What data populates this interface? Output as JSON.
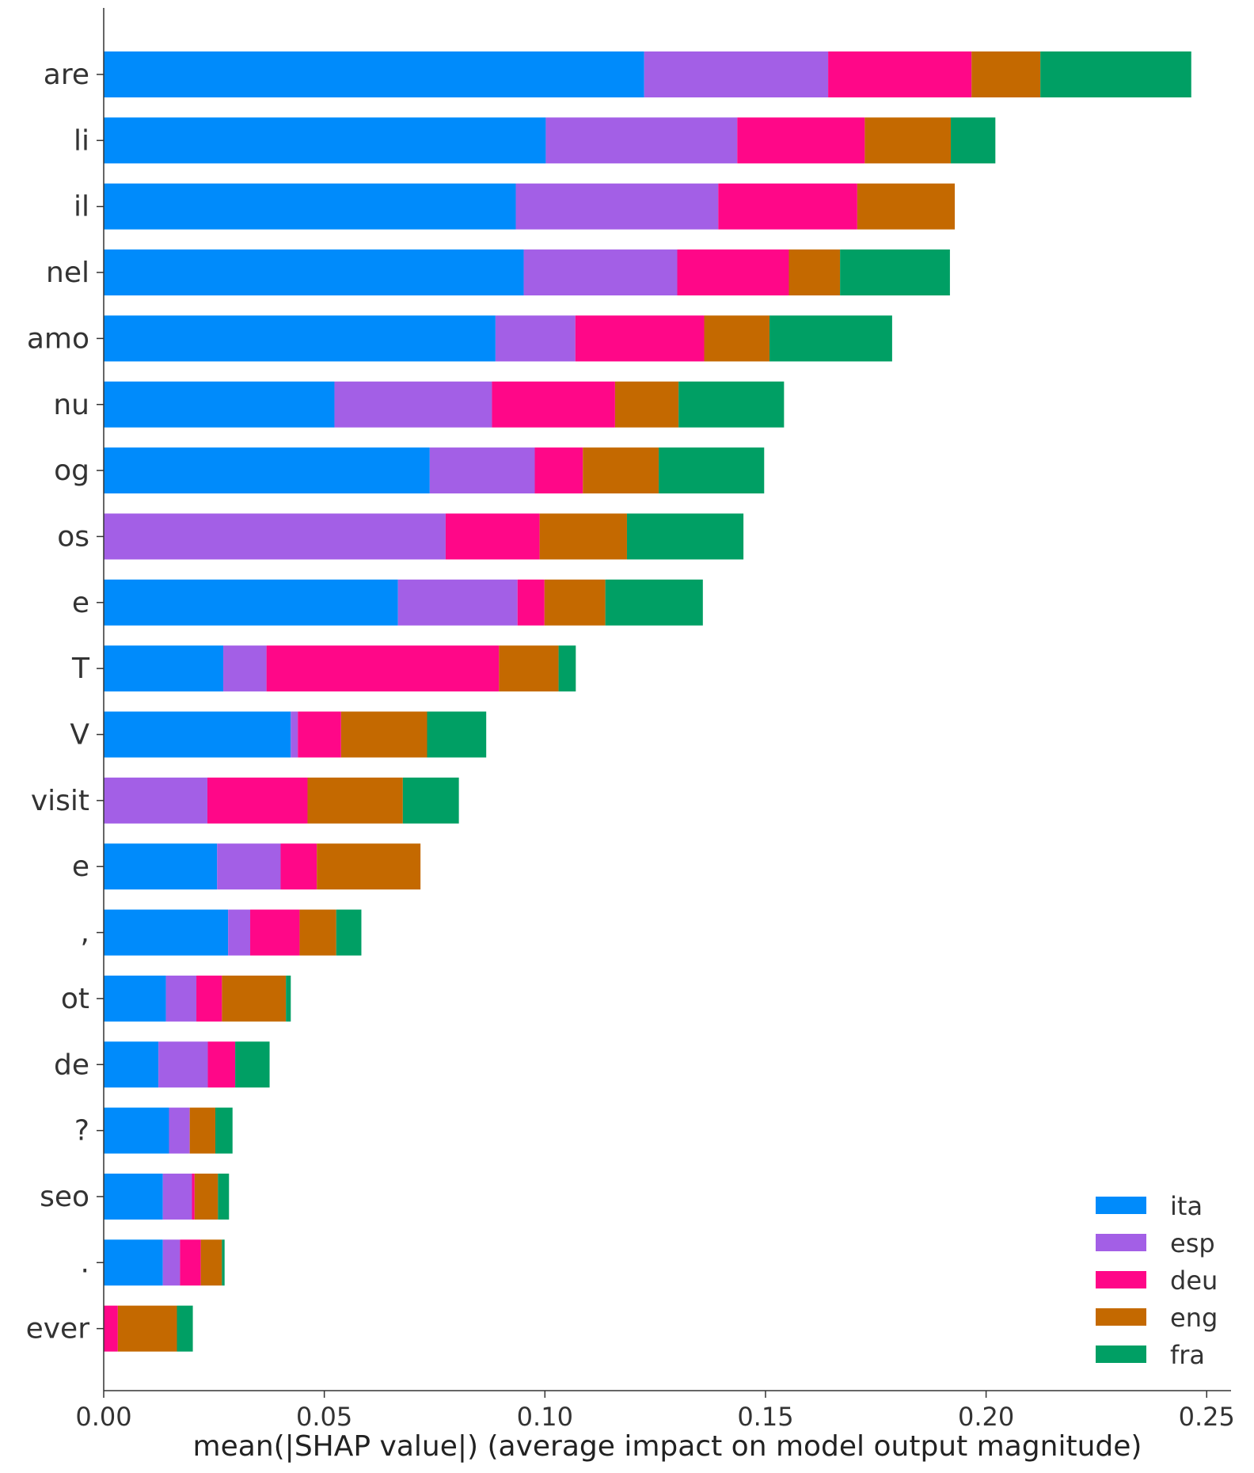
{
  "chart_data": {
    "type": "bar",
    "orientation": "horizontal",
    "stacked": true,
    "title": "",
    "xlabel": "mean(|SHAP value|) (average impact on model output magnitude)",
    "ylabel": "",
    "xlim": [
      0,
      0.258
    ],
    "xticks": [
      "0.00",
      "0.05",
      "0.10",
      "0.15",
      "0.20",
      "0.25"
    ],
    "grid": false,
    "legend_position": "bottom-right",
    "categories": [
      "are",
      "li",
      "il",
      "nel",
      "amo",
      "nu",
      "og",
      "os",
      "e",
      "T",
      "V",
      "visit",
      "e",
      ",",
      "ot",
      "de",
      "?",
      "seo",
      ".",
      "ever"
    ],
    "series": [
      {
        "name": "ita",
        "color": "#008bfb",
        "values": [
          0.1225,
          0.1002,
          0.0934,
          0.0952,
          0.0888,
          0.0523,
          0.0739,
          0.0,
          0.0667,
          0.0271,
          0.0424,
          0.0,
          0.0257,
          0.0282,
          0.0141,
          0.0124,
          0.0148,
          0.0134,
          0.0134,
          0.0
        ]
      },
      {
        "name": "esp",
        "color": "#a35fe6",
        "values": [
          0.0417,
          0.0434,
          0.0459,
          0.0348,
          0.0181,
          0.0357,
          0.0238,
          0.0775,
          0.0271,
          0.0098,
          0.0016,
          0.0235,
          0.0144,
          0.005,
          0.0069,
          0.0112,
          0.0047,
          0.0066,
          0.0039,
          0.0
        ]
      },
      {
        "name": "deu",
        "color": "#ff0788",
        "values": [
          0.0325,
          0.0289,
          0.0315,
          0.0253,
          0.0292,
          0.0279,
          0.0109,
          0.0213,
          0.0061,
          0.0527,
          0.0098,
          0.0227,
          0.0082,
          0.0112,
          0.0058,
          0.0062,
          0.0,
          0.0006,
          0.0047,
          0.0032
        ]
      },
      {
        "name": "eng",
        "color": "#c46900",
        "values": [
          0.0156,
          0.0195,
          0.0221,
          0.0116,
          0.0148,
          0.0144,
          0.0172,
          0.0198,
          0.0138,
          0.0135,
          0.0195,
          0.0216,
          0.0235,
          0.0083,
          0.0145,
          0.0,
          0.0058,
          0.0053,
          0.0048,
          0.0134
        ]
      },
      {
        "name": "fra",
        "color": "#009f64",
        "values": [
          0.0342,
          0.0101,
          0.0,
          0.0249,
          0.0278,
          0.0239,
          0.0239,
          0.0264,
          0.0221,
          0.0039,
          0.0134,
          0.0127,
          0.0,
          0.0057,
          0.0011,
          0.0078,
          0.0039,
          0.0025,
          0.0006,
          0.0036
        ]
      }
    ]
  }
}
